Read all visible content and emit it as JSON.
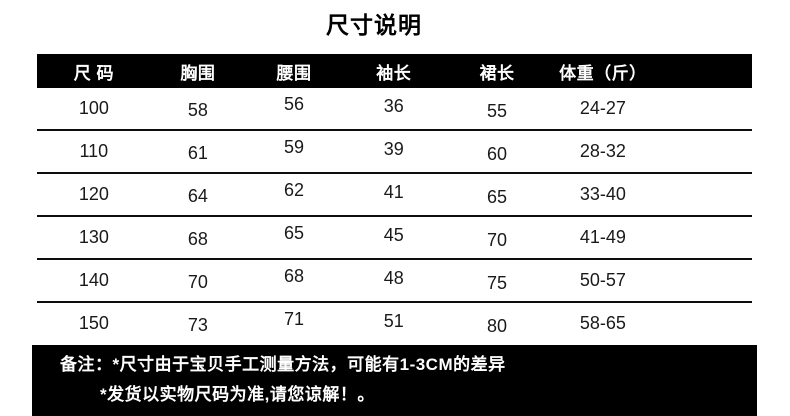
{
  "title": "尺寸说明",
  "table": {
    "headers": [
      "尺 码",
      "胸围",
      "腰围",
      "袖长",
      "裙长",
      "体重（斤）"
    ],
    "rows": [
      [
        "100",
        "58",
        "56",
        "36",
        "55",
        "24-27"
      ],
      [
        "110",
        "61",
        "59",
        "39",
        "60",
        "28-32"
      ],
      [
        "120",
        "64",
        "62",
        "41",
        "65",
        "33-40"
      ],
      [
        "130",
        "68",
        "65",
        "45",
        "70",
        "41-49"
      ],
      [
        "140",
        "70",
        "68",
        "48",
        "75",
        "50-57"
      ],
      [
        "150",
        "73",
        "71",
        "51",
        "80",
        "58-65"
      ]
    ]
  },
  "notes": {
    "line1": "备注：*尺寸由于宝贝手工测量方法，可能有1-3CM的差异",
    "line2": "*发货以实物尺码为准,请您谅解！。"
  },
  "colors": {
    "header_bg": "#000000",
    "header_text": "#ffffff",
    "notes_bg": "#000000",
    "notes_text": "#ffffff",
    "body_text": "#1a1a1a",
    "background": "#ffffff"
  }
}
